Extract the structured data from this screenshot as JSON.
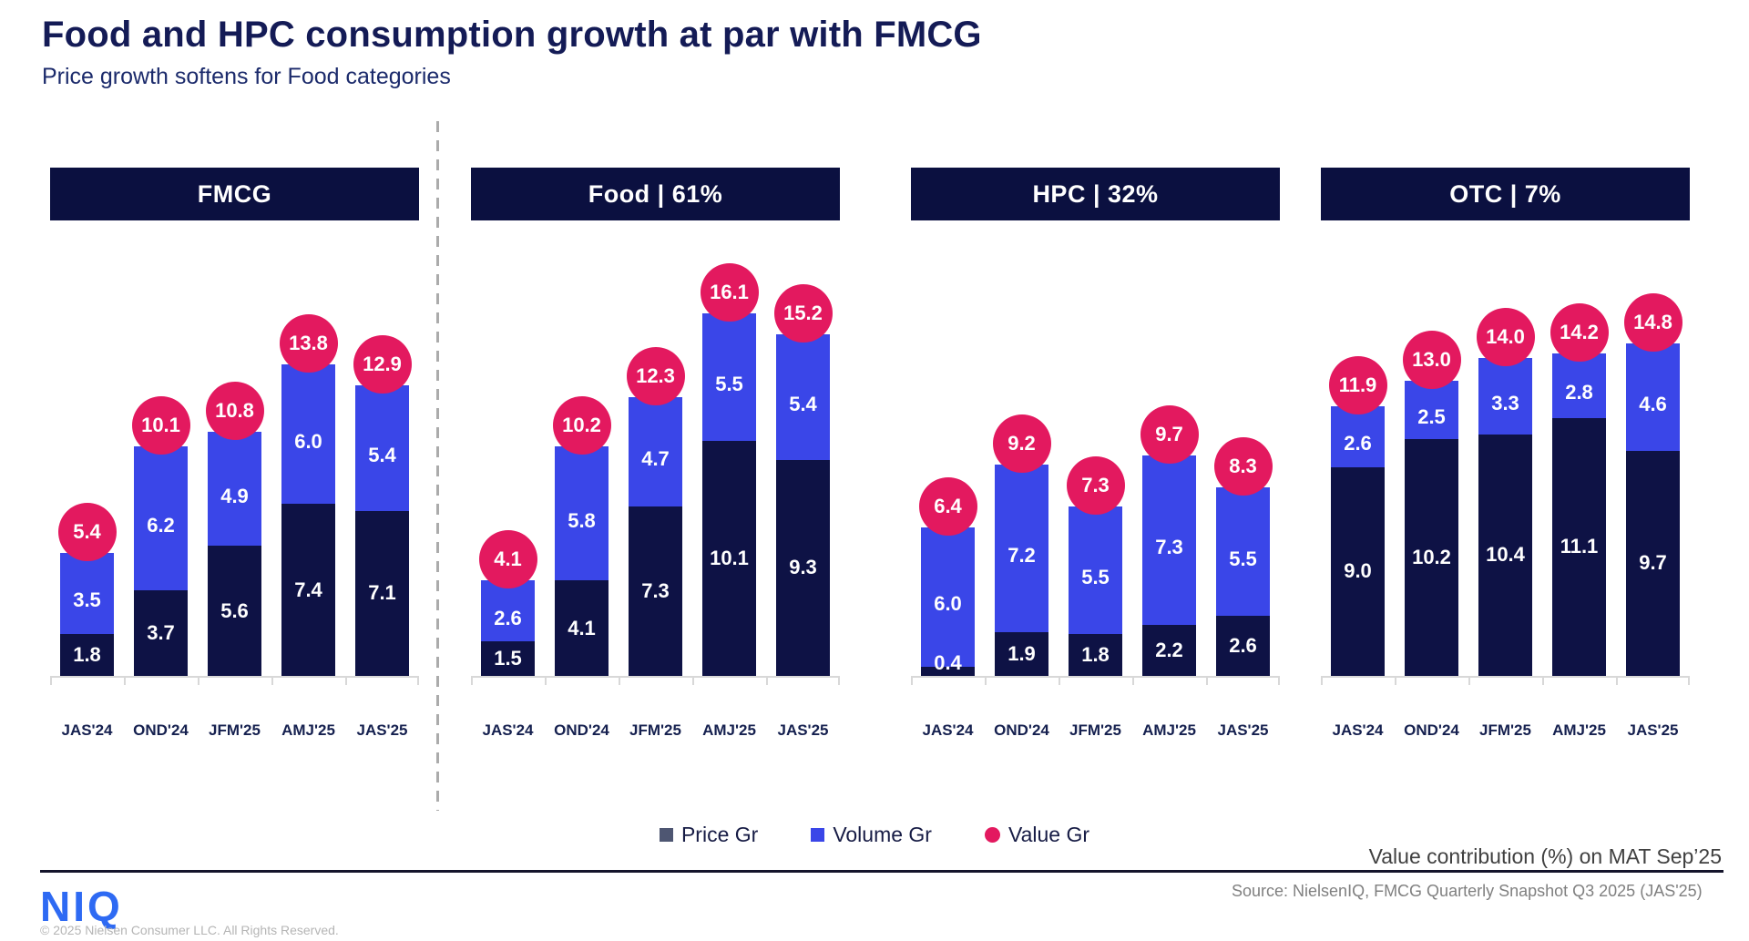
{
  "header": {
    "title": "Food and HPC consumption growth at par with FMCG",
    "subtitle": "Price growth softens for Food categories"
  },
  "colors": {
    "price_segment": "#0e1245",
    "volume_segment": "#3a46e8",
    "value_bubble": "#e3195f",
    "panel_header_bg": "#0b1040",
    "legend_price_marker": "#4e5672",
    "title_navy": "#141b56",
    "niq_blue": "#2e6af3",
    "axis_gray": "#d8d8d8"
  },
  "legend": [
    {
      "label": "Price Gr",
      "marker": "square",
      "color": "#4e5672"
    },
    {
      "label": "Volume Gr",
      "marker": "square",
      "color": "#3a46e8"
    },
    {
      "label": "Value Gr",
      "marker": "circle",
      "color": "#e3195f"
    }
  ],
  "chart_data": [
    {
      "type": "bar",
      "stacked": true,
      "title": "FMCG",
      "categories": [
        "JAS'24",
        "OND'24",
        "JFM'25",
        "AMJ'25",
        "JAS'25"
      ],
      "series": [
        {
          "name": "Price Gr",
          "values": [
            1.8,
            3.7,
            5.6,
            7.4,
            7.1
          ]
        },
        {
          "name": "Volume Gr",
          "values": [
            3.5,
            6.2,
            4.9,
            6.0,
            5.4
          ]
        },
        {
          "name": "Value Gr",
          "values": [
            5.4,
            10.1,
            10.8,
            13.8,
            12.9
          ]
        }
      ],
      "legend_position": "bottom",
      "grid": false,
      "value_labels": true
    },
    {
      "type": "bar",
      "stacked": true,
      "title": "Food | 61%",
      "categories": [
        "JAS'24",
        "OND'24",
        "JFM'25",
        "AMJ'25",
        "JAS'25"
      ],
      "series": [
        {
          "name": "Price Gr",
          "values": [
            1.5,
            4.1,
            7.3,
            10.1,
            9.3
          ]
        },
        {
          "name": "Volume Gr",
          "values": [
            2.6,
            5.8,
            4.7,
            5.5,
            5.4
          ]
        },
        {
          "name": "Value Gr",
          "values": [
            4.1,
            10.2,
            12.3,
            16.1,
            15.2
          ]
        }
      ],
      "legend_position": "bottom",
      "grid": false,
      "value_labels": true
    },
    {
      "type": "bar",
      "stacked": true,
      "title": "HPC | 32%",
      "categories": [
        "JAS'24",
        "OND'24",
        "JFM'25",
        "AMJ'25",
        "JAS'25"
      ],
      "series": [
        {
          "name": "Price Gr",
          "values": [
            0.4,
            1.9,
            1.8,
            2.2,
            2.6
          ]
        },
        {
          "name": "Volume Gr",
          "values": [
            6.0,
            7.2,
            5.5,
            7.3,
            5.5
          ]
        },
        {
          "name": "Value Gr",
          "values": [
            6.4,
            9.2,
            7.3,
            9.7,
            8.3
          ]
        }
      ],
      "legend_position": "bottom",
      "grid": false,
      "value_labels": true
    },
    {
      "type": "bar",
      "stacked": true,
      "title": "OTC | 7%",
      "categories": [
        "JAS'24",
        "OND'24",
        "JFM'25",
        "AMJ'25",
        "JAS'25"
      ],
      "series": [
        {
          "name": "Price Gr",
          "values": [
            9.0,
            10.2,
            10.4,
            11.1,
            9.7
          ]
        },
        {
          "name": "Volume Gr",
          "values": [
            2.6,
            2.5,
            3.3,
            2.8,
            4.6
          ]
        },
        {
          "name": "Value Gr",
          "values": [
            11.9,
            13.0,
            14.0,
            14.2,
            14.8
          ]
        }
      ],
      "legend_position": "bottom",
      "grid": false,
      "value_labels": true
    }
  ],
  "footer": {
    "footnote": "Value contribution (%) on MAT Sep’25",
    "source": "Source: NielsenIQ, FMCG Quarterly Snapshot Q3 2025 (JAS'25)",
    "logo": "NIQ",
    "copyright": "© 2025 Nielsen Consumer LLC. All Rights Reserved."
  }
}
